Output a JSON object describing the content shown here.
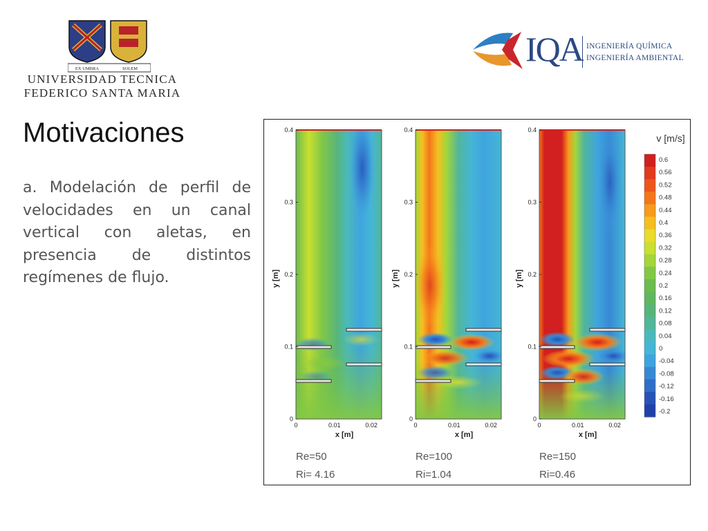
{
  "header": {
    "university": {
      "line1": "UNIVERSIDAD TECNICA",
      "line2": "FEDERICO SANTA MARIA",
      "motto_left": "EX UMBRA",
      "motto_right": "SOLEM"
    },
    "department": {
      "acronym": "IQA",
      "line1": "INGENIERÍA QUÍMICA",
      "line2": "INGENIERÍA AMBIENTAL"
    }
  },
  "slide": {
    "title": "Motivaciones",
    "body": "a. Modelación de perfil de velocidades en un canal vertical con aletas, en presencia de distintos regímenes de flujo."
  },
  "figure": {
    "y_axis_label": "y [m]",
    "x_axis_label": "x [m]",
    "y_ticks": [
      "0.4",
      "0.3",
      "0.2",
      "0.1",
      "0"
    ],
    "x_ticks": [
      "0",
      "0.01",
      "0.02"
    ],
    "panels": [
      {
        "re": "Re=50",
        "ri": "Ri= 4.16"
      },
      {
        "re": "Re=100",
        "ri": "Ri=1.04"
      },
      {
        "re": "Re=150",
        "ri": "Ri=0.46"
      }
    ],
    "colorbar": {
      "title": "v [m/s]",
      "labels": [
        "0.6",
        "0.56",
        "0.52",
        "0.48",
        "0.44",
        "0.4",
        "0.36",
        "0.32",
        "0.28",
        "0.24",
        "0.2",
        "0.16",
        "0.12",
        "0.08",
        "0.04",
        "0",
        "-0.04",
        "-0.08",
        "-0.12",
        "-0.16",
        "-0.2"
      ],
      "colors": [
        "#d21f1f",
        "#e13a1d",
        "#ec561b",
        "#f4751a",
        "#f89a1c",
        "#f5bf22",
        "#eadc2b",
        "#c9e030",
        "#a3d63a",
        "#83c845",
        "#6bbd4c",
        "#5fb85e",
        "#58b57a",
        "#52b69a",
        "#4bb9bb",
        "#45b6d6",
        "#3fa4de",
        "#3789d4",
        "#2f6ec8",
        "#2753b9",
        "#2040aa"
      ]
    }
  }
}
